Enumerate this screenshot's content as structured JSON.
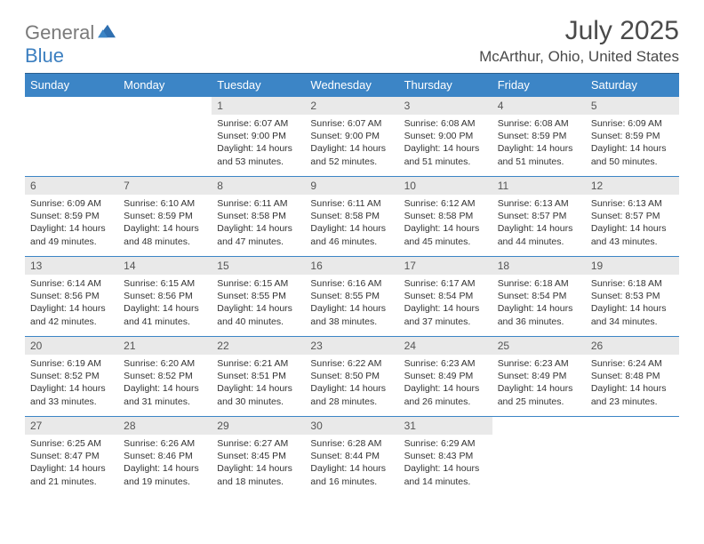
{
  "brand": {
    "name_a": "General",
    "name_b": "Blue"
  },
  "header": {
    "month_title": "July 2025",
    "location": "McArthur, Ohio, United States"
  },
  "colors": {
    "header_bg": "#3c85c6",
    "row_divider": "#3c85c6",
    "daynum_bg": "#e9e9e9",
    "text": "#333333"
  },
  "dow": [
    "Sunday",
    "Monday",
    "Tuesday",
    "Wednesday",
    "Thursday",
    "Friday",
    "Saturday"
  ],
  "weeks": [
    [
      {
        "empty": true
      },
      {
        "empty": true
      },
      {
        "n": "1",
        "sr": "6:07 AM",
        "ss": "9:00 PM",
        "dl": "14 hours and 53 minutes."
      },
      {
        "n": "2",
        "sr": "6:07 AM",
        "ss": "9:00 PM",
        "dl": "14 hours and 52 minutes."
      },
      {
        "n": "3",
        "sr": "6:08 AM",
        "ss": "9:00 PM",
        "dl": "14 hours and 51 minutes."
      },
      {
        "n": "4",
        "sr": "6:08 AM",
        "ss": "8:59 PM",
        "dl": "14 hours and 51 minutes."
      },
      {
        "n": "5",
        "sr": "6:09 AM",
        "ss": "8:59 PM",
        "dl": "14 hours and 50 minutes."
      }
    ],
    [
      {
        "n": "6",
        "sr": "6:09 AM",
        "ss": "8:59 PM",
        "dl": "14 hours and 49 minutes."
      },
      {
        "n": "7",
        "sr": "6:10 AM",
        "ss": "8:59 PM",
        "dl": "14 hours and 48 minutes."
      },
      {
        "n": "8",
        "sr": "6:11 AM",
        "ss": "8:58 PM",
        "dl": "14 hours and 47 minutes."
      },
      {
        "n": "9",
        "sr": "6:11 AM",
        "ss": "8:58 PM",
        "dl": "14 hours and 46 minutes."
      },
      {
        "n": "10",
        "sr": "6:12 AM",
        "ss": "8:58 PM",
        "dl": "14 hours and 45 minutes."
      },
      {
        "n": "11",
        "sr": "6:13 AM",
        "ss": "8:57 PM",
        "dl": "14 hours and 44 minutes."
      },
      {
        "n": "12",
        "sr": "6:13 AM",
        "ss": "8:57 PM",
        "dl": "14 hours and 43 minutes."
      }
    ],
    [
      {
        "n": "13",
        "sr": "6:14 AM",
        "ss": "8:56 PM",
        "dl": "14 hours and 42 minutes."
      },
      {
        "n": "14",
        "sr": "6:15 AM",
        "ss": "8:56 PM",
        "dl": "14 hours and 41 minutes."
      },
      {
        "n": "15",
        "sr": "6:15 AM",
        "ss": "8:55 PM",
        "dl": "14 hours and 40 minutes."
      },
      {
        "n": "16",
        "sr": "6:16 AM",
        "ss": "8:55 PM",
        "dl": "14 hours and 38 minutes."
      },
      {
        "n": "17",
        "sr": "6:17 AM",
        "ss": "8:54 PM",
        "dl": "14 hours and 37 minutes."
      },
      {
        "n": "18",
        "sr": "6:18 AM",
        "ss": "8:54 PM",
        "dl": "14 hours and 36 minutes."
      },
      {
        "n": "19",
        "sr": "6:18 AM",
        "ss": "8:53 PM",
        "dl": "14 hours and 34 minutes."
      }
    ],
    [
      {
        "n": "20",
        "sr": "6:19 AM",
        "ss": "8:52 PM",
        "dl": "14 hours and 33 minutes."
      },
      {
        "n": "21",
        "sr": "6:20 AM",
        "ss": "8:52 PM",
        "dl": "14 hours and 31 minutes."
      },
      {
        "n": "22",
        "sr": "6:21 AM",
        "ss": "8:51 PM",
        "dl": "14 hours and 30 minutes."
      },
      {
        "n": "23",
        "sr": "6:22 AM",
        "ss": "8:50 PM",
        "dl": "14 hours and 28 minutes."
      },
      {
        "n": "24",
        "sr": "6:23 AM",
        "ss": "8:49 PM",
        "dl": "14 hours and 26 minutes."
      },
      {
        "n": "25",
        "sr": "6:23 AM",
        "ss": "8:49 PM",
        "dl": "14 hours and 25 minutes."
      },
      {
        "n": "26",
        "sr": "6:24 AM",
        "ss": "8:48 PM",
        "dl": "14 hours and 23 minutes."
      }
    ],
    [
      {
        "n": "27",
        "sr": "6:25 AM",
        "ss": "8:47 PM",
        "dl": "14 hours and 21 minutes."
      },
      {
        "n": "28",
        "sr": "6:26 AM",
        "ss": "8:46 PM",
        "dl": "14 hours and 19 minutes."
      },
      {
        "n": "29",
        "sr": "6:27 AM",
        "ss": "8:45 PM",
        "dl": "14 hours and 18 minutes."
      },
      {
        "n": "30",
        "sr": "6:28 AM",
        "ss": "8:44 PM",
        "dl": "14 hours and 16 minutes."
      },
      {
        "n": "31",
        "sr": "6:29 AM",
        "ss": "8:43 PM",
        "dl": "14 hours and 14 minutes."
      },
      {
        "empty": true
      },
      {
        "empty": true
      }
    ]
  ],
  "labels": {
    "sunrise": "Sunrise: ",
    "sunset": "Sunset: ",
    "daylight": "Daylight: "
  }
}
